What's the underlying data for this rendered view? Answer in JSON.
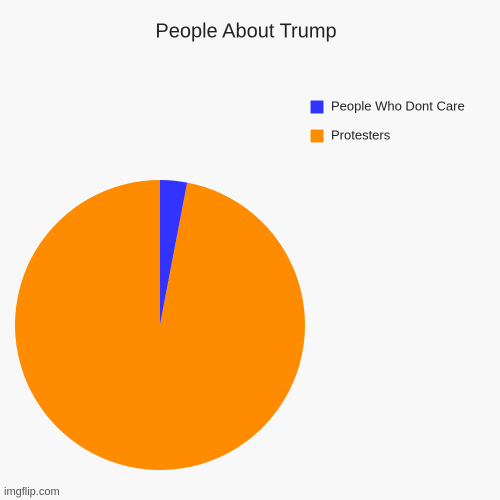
{
  "chart_data": {
    "type": "pie",
    "title": "People About Trump",
    "categories": [
      "People Who Dont Care",
      "Protesters"
    ],
    "values": [
      3,
      97
    ],
    "colors": [
      "#3333ff",
      "#ff8c00"
    ],
    "legend": "top-right",
    "watermark": "imgflip.com"
  }
}
